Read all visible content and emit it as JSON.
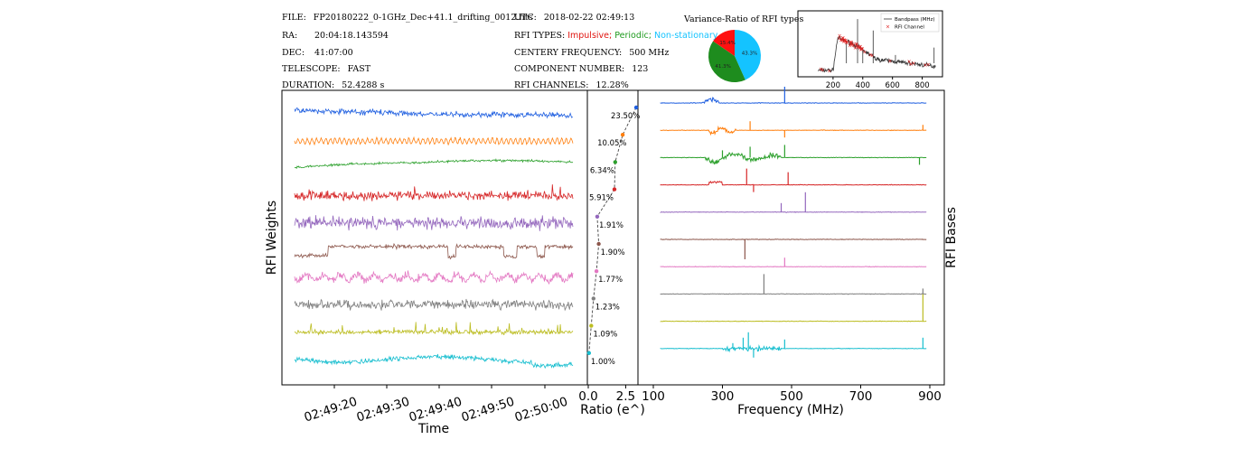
{
  "header": {
    "file_key": "FILE:",
    "file": "FP20180222_0-1GHz_Dec+41.1_drifting_0012.fits",
    "ra_key": "RA:",
    "ra": "20:04:18.143594",
    "dec_key": "DEC:",
    "dec": "41:07:00",
    "telescope_key": "TELESCOPE:",
    "telescope": "FAST",
    "duration_key": "DURATION:",
    "duration": "52.4288 s",
    "utc_key": "UTC:",
    "utc": "2018-02-22 02:49:13",
    "rfi_types_key": "RFI TYPES:",
    "rfi_type_impulsive": "Impulsive;",
    "rfi_type_periodic": "Periodic;",
    "rfi_type_nonstationary": "Non-stationary",
    "centery_key": "CENTERY FREQUENCY:",
    "centery": "500 MHz",
    "component_key": "COMPONENT NUMBER:",
    "component": "123",
    "channels_key": "RFI CHANNELS:",
    "channels": "12.28%"
  },
  "colors": [
    "#1f5fe0",
    "#ff7f0e",
    "#2ca02c",
    "#d62728",
    "#9467bd",
    "#8c564b",
    "#e377c2",
    "#7f7f7f",
    "#bcbd22",
    "#17becf"
  ],
  "chart_data": [
    {
      "type": "pie",
      "title": "Variance-Ratio of RFI types",
      "slices": [
        {
          "label": "Non-stationary",
          "value": 43.3,
          "text": "43.3%",
          "color": "#14c3ff"
        },
        {
          "label": "Periodic",
          "value": 41.3,
          "text": "41.3%",
          "color": "#1e8c1e"
        },
        {
          "label": "Impulsive",
          "value": 15.4,
          "text": "15.4%",
          "color": "#ff1010"
        }
      ]
    },
    {
      "type": "line",
      "legend": [
        "Bandpass (MHz)",
        "RFI Channel"
      ],
      "legend_position": "top-right",
      "xlim": [
        0,
        900
      ],
      "xticks": [
        200,
        400,
        600,
        800
      ],
      "xticklabels": [
        "200",
        "400",
        "600",
        "800"
      ]
    },
    {
      "type": "line",
      "xlabel": "Time",
      "ylabel": "RFI Weights",
      "xticklabels": [
        "02:49:20",
        "02:49:30",
        "02:49:40",
        "02:49:50",
        "02:50:00"
      ],
      "series_count": 10
    },
    {
      "type": "scatter",
      "xlabel": "Ratio (e^)",
      "xticklabels": [
        "0.0",
        "2.5"
      ],
      "x": [
        3.2,
        2.3,
        1.8,
        1.75,
        0.6,
        0.7,
        0.55,
        0.35,
        0.2,
        0.05
      ],
      "labels": [
        "23.50%",
        "10.05%",
        "6.34%",
        "5.91%",
        "1.91%",
        "1.90%",
        "1.77%",
        "1.23%",
        "1.09%",
        "1.00%"
      ]
    },
    {
      "type": "line",
      "xlabel": "Frequency (MHz)",
      "ylabel": "RFI Bases",
      "xlim": [
        100,
        900
      ],
      "xticks": [
        100,
        300,
        500,
        700,
        900
      ],
      "xticklabels": [
        "100",
        "300",
        "500",
        "700",
        "900"
      ]
    }
  ]
}
